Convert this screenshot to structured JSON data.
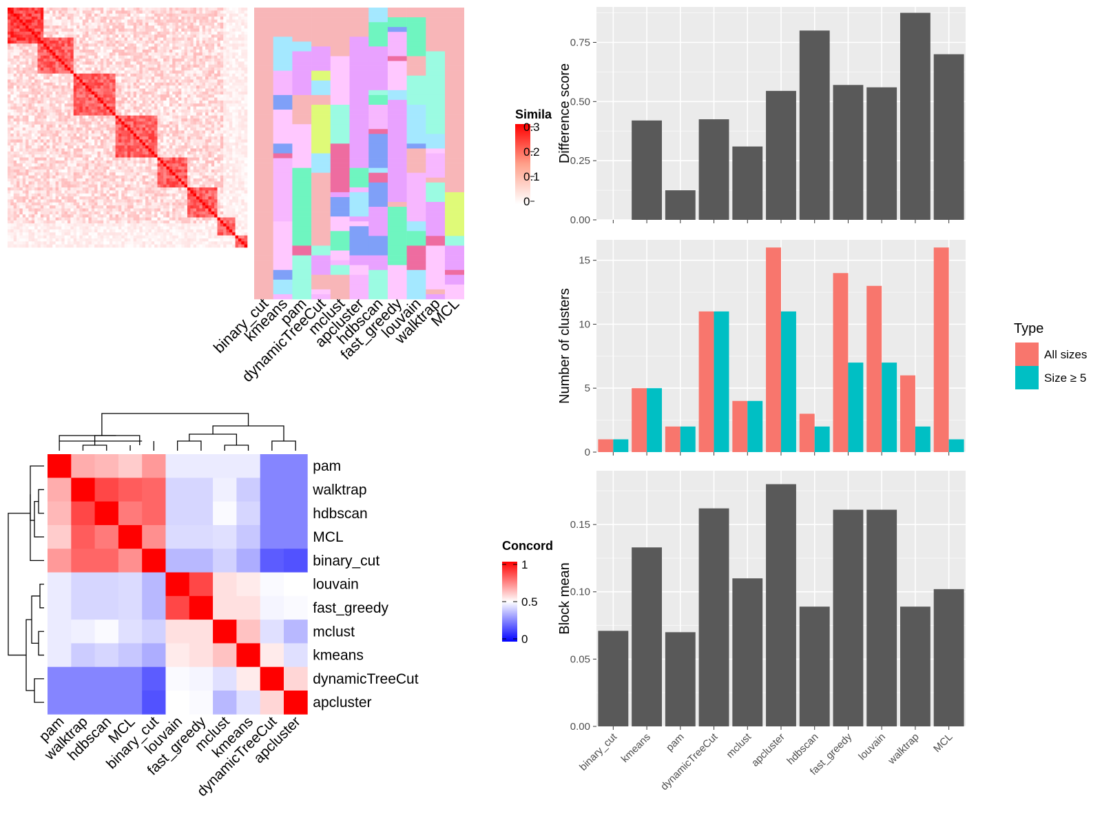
{
  "methods_order": [
    "binary_cut",
    "kmeans",
    "pam",
    "dynamicTreeCut",
    "mclust",
    "apcluster",
    "hdbscan",
    "fast_greedy",
    "louvain",
    "walktrap",
    "MCL"
  ],
  "similarity_heatmap": {
    "legend_title": "Simila",
    "legend_ticks": [
      "0.3",
      "0.2",
      "0.1",
      "0"
    ],
    "col_labels": [
      "binary_cut",
      "kmeans",
      "pam",
      "dynamicTreeCut",
      "mclust",
      "apcluster",
      "hdbscan",
      "fast_greedy",
      "louvain",
      "walktrap",
      "MCL"
    ],
    "cluster_palette": [
      "#F8B6B8",
      "#FFC8FF",
      "#E9A2FF",
      "#DFFA78",
      "#EE6CA0",
      "#7FA0F8",
      "#9BFBE2",
      "#6FF5C0",
      "#F7B7FF",
      "#A4E8FF"
    ],
    "colors": {
      "high": "#FF0000",
      "low": "#FFFFFF"
    }
  },
  "concordance_heatmap": {
    "legend_title": "Concord",
    "legend_ticks": [
      "1",
      "0.5",
      "0"
    ],
    "labels": [
      "pam",
      "walktrap",
      "hdbscan",
      "MCL",
      "binary_cut",
      "louvain",
      "fast_greedy",
      "mclust",
      "kmeans",
      "dynamicTreeCut",
      "apcluster"
    ],
    "colors": {
      "high": "#FF0000",
      "mid": "#FFFFFF",
      "low": "#0000FF"
    }
  },
  "chart_data": [
    {
      "type": "bar",
      "categories": [
        "binary_cut",
        "kmeans",
        "pam",
        "dynamicTreeCut",
        "mclust",
        "apcluster",
        "hdbscan",
        "fast_greedy",
        "louvain",
        "walktrap",
        "MCL"
      ],
      "values": [
        0.0,
        0.42,
        0.125,
        0.425,
        0.31,
        0.545,
        0.8,
        0.57,
        0.56,
        0.875,
        0.7
      ],
      "ylabel": "Difference score",
      "ylim": [
        0,
        0.9
      ],
      "yticks": [
        "0.00",
        "0.25",
        "0.50",
        "0.75"
      ],
      "bar_color": "#595959"
    },
    {
      "type": "bar",
      "categories": [
        "binary_cut",
        "kmeans",
        "pam",
        "dynamicTreeCut",
        "mclust",
        "apcluster",
        "hdbscan",
        "fast_greedy",
        "louvain",
        "walktrap",
        "MCL"
      ],
      "series": [
        {
          "name": "All sizes",
          "values": [
            1,
            5,
            2,
            11,
            4,
            16,
            3,
            14,
            13,
            6,
            16
          ],
          "color": "#F8766D"
        },
        {
          "name": "Size ≥ 5",
          "values": [
            1,
            5,
            2,
            11,
            4,
            11,
            2,
            7,
            7,
            2,
            1
          ],
          "color": "#00BFC4"
        }
      ],
      "ylabel": "Number of clusters",
      "ylim": [
        0,
        16.6
      ],
      "yticks": [
        "0",
        "5",
        "10",
        "15"
      ],
      "legend_title": "Type",
      "legend_position": "right"
    },
    {
      "type": "bar",
      "categories": [
        "binary_cut",
        "kmeans",
        "pam",
        "dynamicTreeCut",
        "mclust",
        "apcluster",
        "hdbscan",
        "fast_greedy",
        "louvain",
        "walktrap",
        "MCL"
      ],
      "values": [
        0.071,
        0.133,
        0.07,
        0.162,
        0.11,
        0.18,
        0.089,
        0.161,
        0.161,
        0.089,
        0.102
      ],
      "ylabel": "Block mean",
      "ylim": [
        0,
        0.19
      ],
      "yticks": [
        "0.00",
        "0.05",
        "0.10",
        "0.15"
      ],
      "bar_color": "#595959"
    }
  ],
  "concordance": [
    [
      1.0,
      0.66,
      0.64,
      0.6,
      0.7,
      0.46,
      0.46,
      0.46,
      0.46,
      0.26,
      0.26
    ],
    [
      0.66,
      1.0,
      0.86,
      0.82,
      0.8,
      0.42,
      0.42,
      0.47,
      0.4,
      0.26,
      0.26
    ],
    [
      0.64,
      0.86,
      1.0,
      0.76,
      0.8,
      0.42,
      0.42,
      0.49,
      0.42,
      0.26,
      0.26
    ],
    [
      0.6,
      0.82,
      0.76,
      1.0,
      0.72,
      0.43,
      0.43,
      0.44,
      0.39,
      0.26,
      0.26
    ],
    [
      0.7,
      0.8,
      0.8,
      0.72,
      1.0,
      0.36,
      0.36,
      0.41,
      0.34,
      0.18,
      0.16
    ],
    [
      0.46,
      0.42,
      0.42,
      0.43,
      0.36,
      1.0,
      0.86,
      0.56,
      0.54,
      0.49,
      0.5
    ],
    [
      0.46,
      0.42,
      0.42,
      0.43,
      0.36,
      0.86,
      1.0,
      0.56,
      0.56,
      0.48,
      0.49
    ],
    [
      0.46,
      0.47,
      0.49,
      0.44,
      0.41,
      0.56,
      0.56,
      1.0,
      0.62,
      0.44,
      0.36
    ],
    [
      0.46,
      0.4,
      0.42,
      0.39,
      0.34,
      0.54,
      0.56,
      0.62,
      1.0,
      0.54,
      0.44
    ],
    [
      0.26,
      0.26,
      0.26,
      0.26,
      0.18,
      0.49,
      0.48,
      0.44,
      0.54,
      1.0,
      0.58
    ],
    [
      0.26,
      0.26,
      0.26,
      0.26,
      0.16,
      0.5,
      0.49,
      0.36,
      0.44,
      0.58,
      1.0
    ]
  ]
}
